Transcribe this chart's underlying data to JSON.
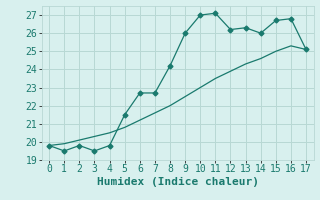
{
  "line1_x": [
    0,
    1,
    2,
    3,
    4,
    5,
    6,
    7,
    8,
    9,
    10,
    11,
    12,
    13,
    14,
    15,
    16,
    17
  ],
  "line1_y": [
    19.8,
    19.5,
    19.8,
    19.5,
    19.8,
    21.5,
    22.7,
    22.7,
    24.2,
    26.0,
    27.0,
    27.1,
    26.2,
    26.3,
    26.0,
    26.7,
    26.8,
    25.1
  ],
  "line2_x": [
    0,
    1,
    2,
    3,
    4,
    5,
    6,
    7,
    8,
    9,
    10,
    11,
    12,
    13,
    14,
    15,
    16,
    17
  ],
  "line2_y": [
    19.8,
    19.9,
    20.1,
    20.3,
    20.5,
    20.8,
    21.2,
    21.6,
    22.0,
    22.5,
    23.0,
    23.5,
    23.9,
    24.3,
    24.6,
    25.0,
    25.3,
    25.1
  ],
  "line_color": "#1a7a6e",
  "bg_color": "#d8f0ee",
  "grid_color": "#b8d8d4",
  "xlabel": "Humidex (Indice chaleur)",
  "ylim": [
    19,
    27.5
  ],
  "xlim": [
    -0.5,
    17.5
  ],
  "yticks": [
    19,
    20,
    21,
    22,
    23,
    24,
    25,
    26,
    27
  ],
  "xticks": [
    0,
    1,
    2,
    3,
    4,
    5,
    6,
    7,
    8,
    9,
    10,
    11,
    12,
    13,
    14,
    15,
    16,
    17
  ],
  "xlabel_fontsize": 8,
  "tick_fontsize": 7,
  "marker": "D",
  "marker_size": 2.5
}
